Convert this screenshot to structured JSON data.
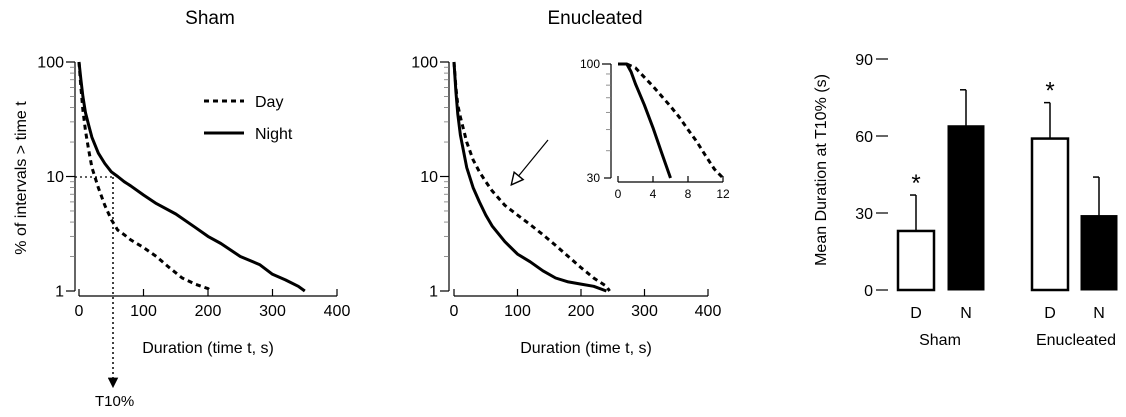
{
  "chart_data": [
    {
      "type": "line",
      "title": "Sham",
      "xlabel": "Duration (time t, s)",
      "ylabel": "% of intervals > time t",
      "xlim": [
        0,
        400
      ],
      "ylim": [
        1,
        100
      ],
      "yscale": "log",
      "xticks": [
        "0",
        "100",
        "200",
        "300",
        "400"
      ],
      "yticks": [
        "1",
        "10",
        "100"
      ],
      "legend": {
        "position": "upper-right",
        "entries": [
          "Day",
          "Night"
        ]
      },
      "series": [
        {
          "name": "Day",
          "style": "dashed",
          "x": [
            0,
            3,
            6,
            10,
            15,
            20,
            30,
            40,
            50,
            60,
            70,
            80,
            100,
            120,
            140,
            160,
            180,
            200,
            205
          ],
          "y": [
            100,
            60,
            38,
            25,
            17,
            12,
            8,
            5.6,
            4.2,
            3.4,
            3.1,
            2.8,
            2.4,
            2.0,
            1.6,
            1.3,
            1.15,
            1.05,
            1.0
          ]
        },
        {
          "name": "Night",
          "style": "solid",
          "x": [
            0,
            3,
            6,
            10,
            15,
            20,
            30,
            40,
            50,
            60,
            70,
            80,
            100,
            120,
            150,
            180,
            200,
            220,
            250,
            280,
            300,
            320,
            340,
            350
          ],
          "y": [
            100,
            70,
            50,
            36,
            28,
            22,
            16,
            13,
            11,
            10,
            9,
            8.3,
            6.9,
            5.8,
            4.7,
            3.6,
            3.0,
            2.6,
            2.0,
            1.7,
            1.4,
            1.25,
            1.1,
            1.0
          ]
        }
      ],
      "annotations": [
        {
          "text": "T10%",
          "x": 58,
          "y": 10
        }
      ]
    },
    {
      "type": "line",
      "title": "Enucleated",
      "xlabel": "Duration (time t, s)",
      "ylabel": "",
      "xlim": [
        0,
        400
      ],
      "ylim": [
        1,
        100
      ],
      "yscale": "log",
      "xticks": [
        "0",
        "100",
        "200",
        "300",
        "400"
      ],
      "yticks": [
        "1",
        "10",
        "100"
      ],
      "series": [
        {
          "name": "Day",
          "style": "dashed",
          "x": [
            0,
            3,
            6,
            10,
            20,
            30,
            40,
            50,
            60,
            80,
            100,
            120,
            140,
            160,
            180,
            200,
            220,
            240,
            245
          ],
          "y": [
            100,
            60,
            42,
            33,
            20,
            14,
            11,
            9,
            7.5,
            5.6,
            4.6,
            3.8,
            3.1,
            2.5,
            2.0,
            1.6,
            1.3,
            1.1,
            1.0
          ]
        },
        {
          "name": "Night",
          "style": "solid",
          "x": [
            0,
            3,
            6,
            10,
            20,
            30,
            40,
            50,
            60,
            80,
            100,
            120,
            140,
            160,
            180,
            200,
            220,
            240
          ],
          "y": [
            100,
            55,
            35,
            23,
            12,
            8,
            6,
            4.6,
            3.7,
            2.7,
            2.1,
            1.8,
            1.5,
            1.3,
            1.2,
            1.15,
            1.1,
            1.0
          ]
        }
      ]
    },
    {
      "type": "line",
      "title": "",
      "inset": true,
      "xlim": [
        0,
        12
      ],
      "ylim": [
        30,
        100
      ],
      "yscale": "log",
      "xticks": [
        "0",
        "4",
        "8",
        "12"
      ],
      "yticks": [
        "30",
        "100"
      ],
      "series": [
        {
          "name": "Day",
          "style": "dashed",
          "x": [
            0,
            1,
            2,
            3,
            4,
            5,
            6,
            7,
            8,
            9,
            10,
            11,
            12
          ],
          "y": [
            100,
            100,
            96,
            87,
            79,
            71,
            64,
            57,
            50,
            44,
            38,
            33,
            30
          ]
        },
        {
          "name": "Night",
          "style": "solid",
          "x": [
            0,
            1,
            1.5,
            2,
            3,
            4,
            5,
            6
          ],
          "y": [
            100,
            100,
            92,
            81,
            65,
            51,
            39,
            30
          ]
        }
      ]
    },
    {
      "type": "bar",
      "ylabel": "Mean Duration at T10% (s)",
      "ylim": [
        0,
        90
      ],
      "yticks": [
        "0",
        "30",
        "60",
        "90"
      ],
      "groups": [
        "Sham",
        "Enucleated"
      ],
      "categories": [
        "D",
        "N",
        "D",
        "N"
      ],
      "series": [
        {
          "values": [
            23,
            64,
            59,
            29
          ],
          "errors": [
            14,
            14,
            14,
            15
          ],
          "fills": [
            "white",
            "black",
            "white",
            "black"
          ],
          "significance": [
            "*",
            "",
            "*",
            ""
          ]
        }
      ]
    }
  ]
}
